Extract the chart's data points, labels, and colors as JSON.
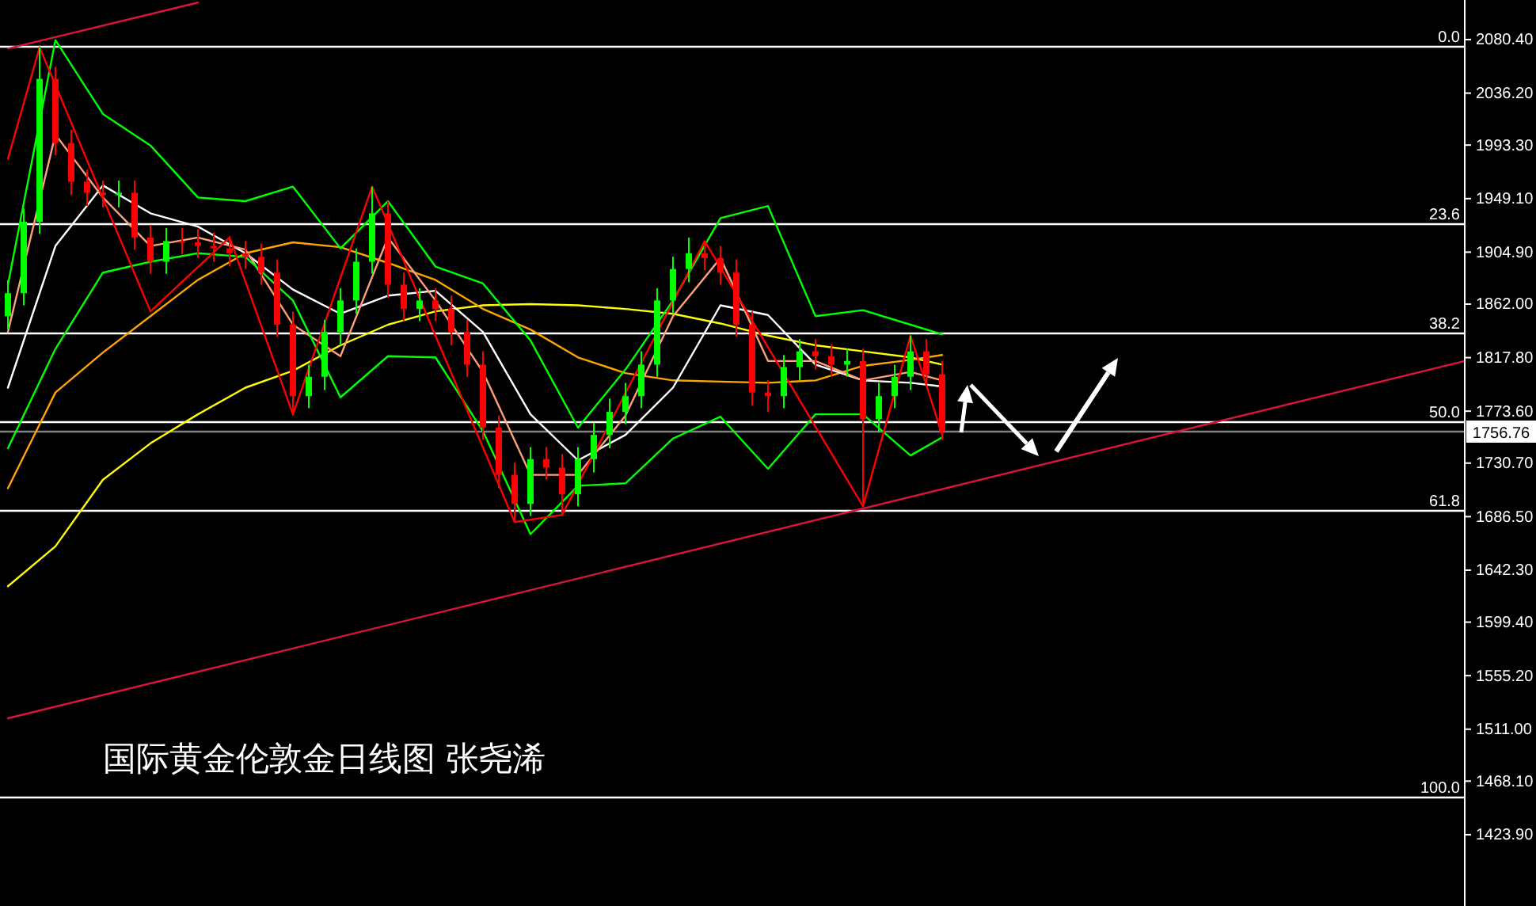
{
  "chart_data": {
    "type": "candlestick",
    "title": "国际黄金伦敦金日线图  张尧浠",
    "categories": [
      null,
      null,
      null,
      null,
      null,
      null,
      null,
      null,
      null,
      null,
      null,
      null,
      null,
      null,
      null,
      null,
      null,
      null,
      null,
      null,
      null,
      null,
      null,
      null,
      null,
      null,
      null,
      null,
      null,
      null,
      null,
      null,
      null,
      null,
      null,
      null,
      null,
      null,
      null,
      null,
      null,
      null,
      null,
      null,
      null,
      null,
      null,
      null,
      null,
      null,
      null,
      null,
      null,
      null,
      null,
      null,
      null,
      null,
      null,
      null,
      null,
      null,
      null,
      null,
      null,
      null,
      null,
      null,
      null,
      null,
      null,
      null,
      null,
      null,
      null,
      null,
      null,
      null,
      null,
      null,
      null,
      null,
      null,
      null,
      null,
      null,
      null,
      null,
      null,
      null,
      null,
      null,
      null
    ],
    "ohlc": [
      [
        1852,
        1882,
        1841,
        1871
      ],
      [
        1871,
        1941,
        1861,
        1930
      ],
      [
        1930,
        2074,
        1920,
        2048
      ],
      [
        2048,
        2058,
        1985,
        1995
      ],
      [
        1995,
        2006,
        1952,
        1963
      ],
      [
        1963,
        1973,
        1943,
        1954
      ],
      [
        1954,
        1964,
        1942,
        1952
      ],
      [
        1952,
        1964,
        1942,
        1954
      ],
      [
        1954,
        1964,
        1907,
        1917
      ],
      [
        1917,
        1927,
        1887,
        1897
      ],
      [
        1897,
        1925,
        1887,
        1914
      ],
      [
        1914,
        1925,
        1903,
        1913
      ],
      [
        1913,
        1924,
        1900,
        1910
      ],
      [
        1910,
        1921,
        1897,
        1908
      ],
      [
        1908,
        1918,
        1893,
        1904
      ],
      [
        1904,
        1914,
        1891,
        1901
      ],
      [
        1901,
        1912,
        1878,
        1888
      ],
      [
        1888,
        1899,
        1835,
        1845
      ],
      [
        1845,
        1856,
        1770,
        1786
      ],
      [
        1786,
        1812,
        1776,
        1802
      ],
      [
        1802,
        1849,
        1791,
        1839
      ],
      [
        1839,
        1875,
        1828,
        1865
      ],
      [
        1865,
        1908,
        1854,
        1897
      ],
      [
        1897,
        1959,
        1887,
        1937
      ],
      [
        1937,
        1947,
        1867,
        1878
      ],
      [
        1878,
        1888,
        1848,
        1858
      ],
      [
        1858,
        1875,
        1848,
        1865
      ],
      [
        1865,
        1875,
        1848,
        1858
      ],
      [
        1858,
        1869,
        1828,
        1839
      ],
      [
        1839,
        1849,
        1802,
        1812
      ],
      [
        1812,
        1823,
        1750,
        1760
      ],
      [
        1760,
        1770,
        1710,
        1721
      ],
      [
        1721,
        1731,
        1682,
        1697
      ],
      [
        1697,
        1744,
        1687,
        1734
      ],
      [
        1734,
        1744,
        1717,
        1727
      ],
      [
        1727,
        1738,
        1688,
        1705
      ],
      [
        1705,
        1744,
        1695,
        1734
      ],
      [
        1734,
        1764,
        1723,
        1754
      ],
      [
        1754,
        1784,
        1743,
        1773
      ],
      [
        1773,
        1797,
        1763,
        1786
      ],
      [
        1786,
        1823,
        1776,
        1812
      ],
      [
        1812,
        1875,
        1802,
        1865
      ],
      [
        1865,
        1901,
        1854,
        1891
      ],
      [
        1891,
        1917,
        1880,
        1904
      ],
      [
        1904,
        1914,
        1890,
        1900
      ],
      [
        1900,
        1910,
        1878,
        1888
      ],
      [
        1888,
        1899,
        1835,
        1845
      ],
      [
        1845,
        1856,
        1778,
        1789
      ],
      [
        1789,
        1799,
        1773,
        1786
      ],
      [
        1786,
        1820,
        1776,
        1810
      ],
      [
        1810,
        1833,
        1799,
        1823
      ],
      [
        1823,
        1833,
        1808,
        1819
      ],
      [
        1819,
        1829,
        1802,
        1812
      ],
      [
        1812,
        1825,
        1802,
        1815
      ],
      [
        1815,
        1825,
        1695,
        1767
      ],
      [
        1767,
        1797,
        1756,
        1786
      ],
      [
        1786,
        1812,
        1776,
        1802
      ],
      [
        1802,
        1836,
        1791,
        1823
      ],
      [
        1823,
        1833,
        1794,
        1804
      ],
      [
        1804,
        1815,
        1750,
        1757
      ],
      null,
      null,
      null,
      null,
      null,
      null,
      null,
      null,
      null,
      null,
      null,
      null,
      null,
      null,
      null,
      null,
      null,
      null,
      null,
      null,
      null,
      null,
      null,
      null,
      null,
      null,
      null,
      null,
      null,
      null,
      null,
      null,
      null
    ],
    "colors": [
      "#00ff00",
      "#00ff00",
      "#00ff00",
      "#ff0000",
      "#ff0000",
      "#ff0000",
      "#ff0000",
      "#00ff00",
      "#ff0000",
      "#ff0000",
      "#00ff00",
      "#ff0000",
      "#ff0000",
      "#ff0000",
      "#ff0000",
      "#ff0000",
      "#ff0000",
      "#ff0000",
      "#ff0000",
      "#00ff00",
      "#00ff00",
      "#00ff00",
      "#00ff00",
      "#00ff00",
      "#ff0000",
      "#ff0000",
      "#00ff00",
      "#ff0000",
      "#ff0000",
      "#ff0000",
      "#ff0000",
      "#ff0000",
      "#ff0000",
      "#00ff00",
      "#ff0000",
      "#ff0000",
      "#00ff00",
      "#00ff00",
      "#00ff00",
      "#00ff00",
      "#00ff00",
      "#00ff00",
      "#00ff00",
      "#00ff00",
      "#ff0000",
      "#ff0000",
      "#ff0000",
      "#ff0000",
      "#ff0000",
      "#00ff00",
      "#00ff00",
      "#ff0000",
      "#ff0000",
      "#00ff00",
      "#ff0000",
      "#00ff00",
      "#00ff00",
      "#00ff00",
      "#ff0000",
      "#ff0000",
      null,
      null,
      null,
      null,
      null,
      null,
      null,
      null,
      null,
      null,
      null,
      null,
      null,
      null,
      null,
      null,
      null,
      null,
      null,
      null,
      null,
      null,
      null,
      null,
      null,
      null,
      null,
      null,
      null,
      null,
      null,
      null,
      null
    ],
    "series": [
      {
        "type": "line",
        "color": "#ffff00",
        "values": [
          1629,
          null,
          null,
          1662,
          null,
          null,
          1717,
          null,
          null,
          1747,
          null,
          null,
          1771,
          null,
          null,
          1793,
          null,
          null,
          1807,
          null,
          null,
          1828,
          null,
          null,
          1845,
          null,
          null,
          1856,
          null,
          null,
          1861,
          null,
          null,
          1862,
          null,
          null,
          1861,
          null,
          null,
          1858,
          null,
          null,
          1854,
          null,
          null,
          1846,
          null,
          null,
          1836,
          null,
          null,
          1828,
          null,
          null,
          1823,
          null,
          null,
          1818,
          null,
          1812,
          null,
          null,
          null,
          null,
          null,
          null,
          null,
          null,
          null,
          null,
          null,
          null,
          null,
          null,
          null,
          null,
          null,
          null,
          null,
          null,
          null,
          null,
          null,
          null,
          null,
          null,
          null,
          null,
          null,
          null,
          null,
          null,
          null
        ]
      },
      {
        "type": "line",
        "color": "#ffa500",
        "values": [
          1710,
          null,
          null,
          1789,
          null,
          null,
          1822,
          null,
          null,
          1852,
          null,
          null,
          1882,
          null,
          null,
          1904,
          null,
          null,
          1913,
          null,
          null,
          1909,
          null,
          null,
          1896,
          null,
          null,
          1882,
          null,
          null,
          1858,
          null,
          null,
          1841,
          null,
          null,
          1818,
          null,
          null,
          1805,
          null,
          null,
          1799,
          null,
          null,
          1798,
          null,
          null,
          1797,
          null,
          null,
          1799,
          null,
          null,
          1811,
          null,
          null,
          1816,
          null,
          1820,
          null,
          null,
          null,
          null,
          null,
          null,
          null,
          null,
          null,
          null,
          null,
          null,
          null,
          null,
          null,
          null,
          null,
          null,
          null,
          null,
          null,
          null,
          null,
          null,
          null,
          null,
          null,
          null,
          null,
          null,
          null,
          null,
          null
        ]
      },
      {
        "type": "line",
        "color": "#ffffff",
        "values": [
          1793,
          null,
          null,
          1910,
          null,
          null,
          1960,
          null,
          null,
          1937,
          null,
          null,
          1926,
          null,
          null,
          1904,
          null,
          null,
          1874,
          null,
          null,
          1854,
          null,
          null,
          1869,
          null,
          null,
          1873,
          null,
          null,
          1839,
          null,
          null,
          1771,
          null,
          null,
          1733,
          null,
          null,
          1754,
          null,
          null,
          1793,
          null,
          null,
          1861,
          null,
          null,
          1853,
          null,
          null,
          1812,
          null,
          null,
          1799,
          null,
          null,
          1797,
          null,
          1794,
          null,
          null,
          null,
          null,
          null,
          null,
          null,
          null,
          null,
          null,
          null,
          null,
          null,
          null,
          null,
          null,
          null,
          null,
          null,
          null,
          null,
          null,
          null,
          null,
          null,
          null,
          null,
          null,
          null,
          null,
          null,
          null,
          null
        ]
      },
      {
        "type": "line",
        "color": "#ffa07a",
        "values": [
          1839,
          null,
          null,
          2002,
          null,
          null,
          1950,
          null,
          null,
          1910,
          null,
          null,
          1917,
          null,
          null,
          1907,
          null,
          null,
          1845,
          null,
          null,
          1819,
          null,
          null,
          1917,
          null,
          null,
          1865,
          null,
          null,
          1806,
          null,
          null,
          1721,
          null,
          null,
          1721,
          null,
          null,
          1770,
          null,
          null,
          1852,
          null,
          null,
          1900,
          null,
          null,
          1815,
          null,
          null,
          1815,
          null,
          null,
          1799,
          null,
          null,
          1806,
          null,
          1799,
          null,
          null,
          null,
          null,
          null,
          null,
          null,
          null,
          null,
          null,
          null,
          null,
          null,
          null,
          null,
          null,
          null,
          null,
          null,
          null,
          null,
          null,
          null,
          null,
          null,
          null,
          null,
          null,
          null,
          null,
          null,
          null,
          null
        ]
      },
      {
        "type": "line",
        "color": "#00ff00",
        "values": [
          1878,
          null,
          null,
          2080,
          null,
          null,
          2019,
          null,
          null,
          1993,
          null,
          null,
          1950,
          null,
          null,
          1947,
          null,
          null,
          1959,
          null,
          null,
          1908,
          null,
          null,
          1947,
          null,
          null,
          1893,
          null,
          null,
          1879,
          null,
          null,
          1832,
          null,
          null,
          1760,
          null,
          null,
          1808,
          null,
          null,
          1865,
          null,
          null,
          1933,
          null,
          null,
          1943,
          null,
          null,
          1852,
          null,
          null,
          1857,
          null,
          null,
          1845,
          null,
          1837,
          null,
          null,
          null,
          null,
          null,
          null,
          null,
          null,
          null,
          null,
          null,
          null,
          null,
          null,
          null,
          null,
          null,
          null,
          null,
          null,
          null,
          null,
          null,
          null,
          null,
          null,
          null,
          null,
          null,
          null,
          null,
          null,
          null
        ]
      },
      {
        "type": "line",
        "color": "#00ff00",
        "values": [
          1743,
          null,
          null,
          1825,
          null,
          null,
          1888,
          null,
          null,
          1897,
          null,
          null,
          1904,
          null,
          null,
          1901,
          null,
          null,
          1865,
          null,
          null,
          1785,
          null,
          null,
          1819,
          null,
          null,
          1818,
          null,
          null,
          1757,
          null,
          null,
          1672,
          null,
          null,
          1712,
          null,
          null,
          1714,
          null,
          null,
          1751,
          null,
          null,
          1769,
          null,
          null,
          1726,
          null,
          null,
          1771,
          null,
          null,
          1771,
          null,
          null,
          1737,
          null,
          1752,
          null,
          null,
          null,
          null,
          null,
          null,
          null,
          null,
          null,
          null,
          null,
          null,
          null,
          null,
          null,
          null,
          null,
          null,
          null,
          null,
          null,
          null,
          null,
          null,
          null,
          null,
          null,
          null,
          null,
          null,
          null,
          null,
          null
        ]
      },
      {
        "type": "line",
        "color": "#ff0000",
        "values": [
          1982,
          null,
          2074,
          null,
          null,
          null,
          null,
          null,
          null,
          1856,
          null,
          null,
          null,
          null,
          1917,
          null,
          null,
          null,
          1771,
          null,
          null,
          null,
          null,
          1959,
          null,
          null,
          null,
          null,
          null,
          null,
          null,
          null,
          1682,
          null,
          null,
          1688,
          null,
          null,
          null,
          null,
          null,
          null,
          null,
          null,
          1914,
          null,
          null,
          null,
          null,
          null,
          null,
          null,
          null,
          null,
          1695,
          null,
          null,
          1836,
          null,
          1754,
          null,
          null,
          null,
          null,
          null,
          null,
          null,
          null,
          null,
          null,
          null,
          null,
          null,
          null,
          null,
          null,
          null,
          null,
          null,
          null,
          null,
          null,
          null,
          null,
          null,
          null,
          null,
          null,
          null,
          null,
          null,
          null,
          null
        ]
      },
      {
        "type": "line",
        "color": "#dc143c",
        "values": [
          1520,
          null,
          null,
          null,
          null,
          null,
          null,
          null,
          null,
          null,
          null,
          null,
          null,
          null,
          null,
          null,
          null,
          null,
          null,
          null,
          null,
          null,
          null,
          null,
          null,
          null,
          null,
          null,
          null,
          null,
          null,
          null,
          null,
          null,
          null,
          null,
          null,
          null,
          null,
          null,
          null,
          null,
          null,
          null,
          null,
          null,
          null,
          null,
          null,
          null,
          null,
          null,
          null,
          null,
          null,
          null,
          null,
          null,
          null,
          null,
          null,
          null,
          null,
          null,
          null,
          null,
          null,
          null,
          null,
          null,
          null,
          null,
          null,
          null,
          null,
          null,
          null,
          null,
          null,
          null,
          null,
          null,
          null,
          null,
          null,
          null,
          null,
          null,
          null,
          null,
          null,
          null,
          1815
        ]
      },
      {
        "type": "line",
        "color": "#dc143c",
        "values": [
          2073,
          null,
          null,
          null,
          null,
          null,
          null,
          null,
          null,
          null,
          null,
          null,
          2111,
          null,
          null,
          null,
          null,
          null,
          null,
          null,
          null,
          null,
          null,
          null,
          null,
          null,
          null,
          null,
          null,
          null,
          null,
          null,
          null,
          null,
          null,
          null,
          null,
          null,
          null,
          null,
          null,
          null,
          null,
          null,
          null,
          null,
          null,
          null,
          null,
          null,
          null,
          null,
          null,
          null,
          null,
          null,
          null,
          null,
          null,
          null,
          null,
          null,
          null,
          null,
          null,
          null,
          null,
          null,
          null,
          null,
          null,
          null,
          null,
          null,
          null,
          null,
          null,
          null,
          null,
          null,
          null,
          null,
          null,
          null,
          null,
          null,
          null,
          null,
          null,
          null,
          null,
          null,
          null
        ]
      }
    ],
    "ylim": [
      1365.0,
      2113.1
    ],
    "yticks": [
      {
        "value": 1423.9,
        "label": "1423.90"
      },
      {
        "value": 1468.1,
        "label": "1468.10"
      },
      {
        "value": 1511,
        "label": "1511.00"
      },
      {
        "value": 1555.2,
        "label": "1555.20"
      },
      {
        "value": 1599.4,
        "label": "1599.40"
      },
      {
        "value": 1642.3,
        "label": "1642.30"
      },
      {
        "value": 1686.5,
        "label": "1686.50"
      },
      {
        "value": 1730.7,
        "label": "1730.70"
      },
      {
        "value": 1773.6,
        "label": "1773.60"
      },
      {
        "value": 1817.8,
        "label": "1817.80"
      },
      {
        "value": 1862,
        "label": "1862.00"
      },
      {
        "value": 1904.9,
        "label": "1904.90"
      },
      {
        "value": 1949.1,
        "label": "1949.10"
      },
      {
        "value": 1993.3,
        "label": "1993.30"
      },
      {
        "value": 2036.2,
        "label": "2036.20"
      },
      {
        "value": 2080.4,
        "label": "2080.40"
      }
    ],
    "ref_lines": [
      {
        "axis": "y",
        "value": 2075.2,
        "color": "#ffffff"
      },
      {
        "axis": "y",
        "value": 1928.9,
        "color": "#ffffff"
      },
      {
        "axis": "y",
        "value": 1838.4,
        "color": "#ffffff"
      },
      {
        "axis": "y",
        "value": 1765.2,
        "color": "#ffffff"
      },
      {
        "axis": "y",
        "value": 1692.0,
        "color": "#ffffff"
      },
      {
        "axis": "y",
        "value": 1455.2,
        "color": "#ffffff"
      },
      {
        "axis": "y",
        "value": 1756.76,
        "label": "1756.76",
        "color": "#808080"
      }
    ],
    "annotations": [
      {
        "text": "0.0",
        "y": 2075.2
      },
      {
        "text": "23.6",
        "y": 1928.9
      },
      {
        "text": "38.2",
        "y": 1838.4
      },
      {
        "text": "50.0",
        "y": 1765.2
      },
      {
        "text": "61.8",
        "y": 1692.0
      },
      {
        "text": "100.0",
        "y": 1455.2
      }
    ],
    "tick_labels": "y"
  }
}
